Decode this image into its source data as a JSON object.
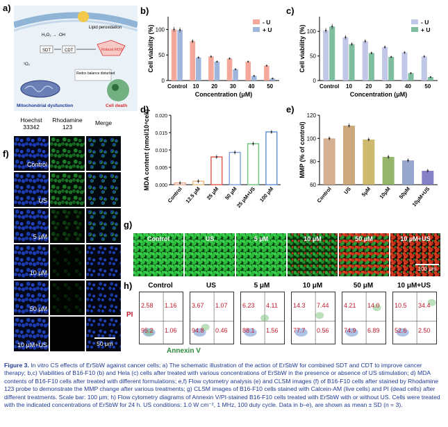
{
  "panel_labels": {
    "a": "a)",
    "b": "b)",
    "c": "c)",
    "d": "d)",
    "e": "e)",
    "f": "f)",
    "g": "g)",
    "h": "h)"
  },
  "schematic": {
    "lipid_label": "Lipid peroxidation",
    "h2o2_label": "H₂O₂ → ·OH",
    "sdt_label": "SDT",
    "cdt_label": "CDT",
    "ros_label": "Robust ROS",
    "o2_label": "¹O₂",
    "redox_label": "Redox balance disturbed",
    "mito_label": "Mitochondrial dysfunction",
    "death_label": "Cell death",
    "colors": {
      "membrane": "#8fb4d6",
      "ros": "#d92b2b",
      "cell": "#4a9a5a"
    }
  },
  "chart_data": [
    {
      "id": "b",
      "type": "bar",
      "ylabel": "Cell viability (%)",
      "xlabel": "Concentration (μM)",
      "categories": [
        "Control",
        "10",
        "20",
        "30",
        "40",
        "50"
      ],
      "ylim": [
        0,
        125
      ],
      "yticks": [
        0,
        50,
        100
      ],
      "series": [
        {
          "name": "- U",
          "color": "#f4a79a",
          "values": [
            100,
            77,
            47,
            43,
            37,
            29
          ]
        },
        {
          "name": "+ U",
          "color": "#9fb6dc",
          "values": [
            99,
            45,
            37,
            22,
            9,
            4
          ]
        }
      ]
    },
    {
      "id": "c",
      "type": "bar",
      "ylabel": "Cell viability (%)",
      "xlabel": "Concentration (μM)",
      "categories": [
        "Control",
        "10",
        "20",
        "30",
        "40",
        "50"
      ],
      "ylim": [
        0,
        130
      ],
      "yticks": [
        0,
        50,
        100
      ],
      "series": [
        {
          "name": "- U",
          "color": "#c1c7e6",
          "values": [
            102,
            88,
            80,
            68,
            57,
            49
          ]
        },
        {
          "name": "+ U",
          "color": "#7fbd9f",
          "values": [
            110,
            74,
            56,
            48,
            15,
            7
          ]
        }
      ]
    },
    {
      "id": "d",
      "type": "bar",
      "ylabel": "MDA content (nmol/10⁴cell)",
      "categories": [
        "Control",
        "12.5 μM",
        "25 μM",
        "50 μM",
        "25 μM+US",
        "100 μM"
      ],
      "ylim": [
        0,
        0.02
      ],
      "yticks": [
        "0.000",
        "0.005",
        "0.010",
        "0.015",
        "0.020"
      ],
      "values": [
        0.0005,
        0.001,
        0.008,
        0.0093,
        0.0118,
        0.0152
      ],
      "colors": [
        "#e8a88f",
        "#e8b77a",
        "#e0554a",
        "#7ea0d8",
        "#6cc07c",
        "#5f8ed2"
      ]
    },
    {
      "id": "e",
      "type": "bar",
      "ylabel": "MMP (% of control)",
      "categories": [
        "Control",
        "US",
        "5μM",
        "10μM",
        "50μM",
        "10μM+US"
      ],
      "ylim": [
        60,
        120
      ],
      "yticks": [
        60,
        80,
        100,
        120
      ],
      "values": [
        100,
        111,
        99,
        84,
        81,
        72
      ],
      "colors": [
        "#d2a786",
        "#c5a06e",
        "#c8b35e",
        "#8aae5a",
        "#8b9cc8",
        "#7a74c2"
      ]
    }
  ],
  "clsm": {
    "headers": [
      "Hoechst\n33342",
      "Rhodamine\n123",
      "Merge"
    ],
    "rows": [
      "Control",
      "US",
      "5 μM",
      "10 μM",
      "50 μM",
      "10 μM+US"
    ],
    "scale": "50 μm"
  },
  "live_dead": {
    "labels": [
      "Control",
      "US",
      "5 μM",
      "10 μM",
      "50 μM",
      "10 μM+US"
    ],
    "scale": "100 μm"
  },
  "flow": {
    "labels": [
      "Control",
      "US",
      "5 μM",
      "10 μM",
      "50 μM",
      "10 μM+US"
    ],
    "quadrants": [
      [
        "2.58",
        "1.16",
        "95.2",
        "1.06"
      ],
      [
        "3.67",
        "1.07",
        "94.8",
        "0.46"
      ],
      [
        "6.23",
        "4.11",
        "88.1",
        "1.56"
      ],
      [
        "14.3",
        "7.44",
        "77.7",
        "0.56"
      ],
      [
        "4.21",
        "14.0",
        "74.9",
        "6.89"
      ],
      [
        "10.5",
        "34.4",
        "52.6",
        "2.50"
      ]
    ],
    "y_axis": "PI",
    "x_axis": "Annexin V"
  },
  "caption": {
    "title": "Figure 3.",
    "text": " In vitro CS effects of ErSbW against cancer cells; a) The schematic illustration of the action of ErSbW for combined SDT and CDT to improve cancer therapy; b,c) Viabilities of B16-F10 (b) and Hela (c) cells after treated with various concentrations of ErSbW in the presence or absence of US stimulation; d) MDA contents of B16-F10 cells after treated with different formulations; e,f) Flow cytometry analysis (e) and CLSM images (f) of B16-F10 cells after stained by Rhodamine 123 probe to demonstrate the MMP change after various treatments; g) CLSM images of B16-F10 cells stained with Calcein-AM (live cells) and PI (dead cells) after different treatments. Scale bar: 100 μm; h) Flow cytometry diagrams of Annexin V/PI-stained B16-F10 cells treated with ErSbW with or without US. Cells were treated with the indicated concentrations of ErSbW for 24 h. US conditions: 1.0 W cm⁻², 1 MHz, 100 duty cycle. Data in b–e), are shown as mean ± SD (n = 3)."
  }
}
